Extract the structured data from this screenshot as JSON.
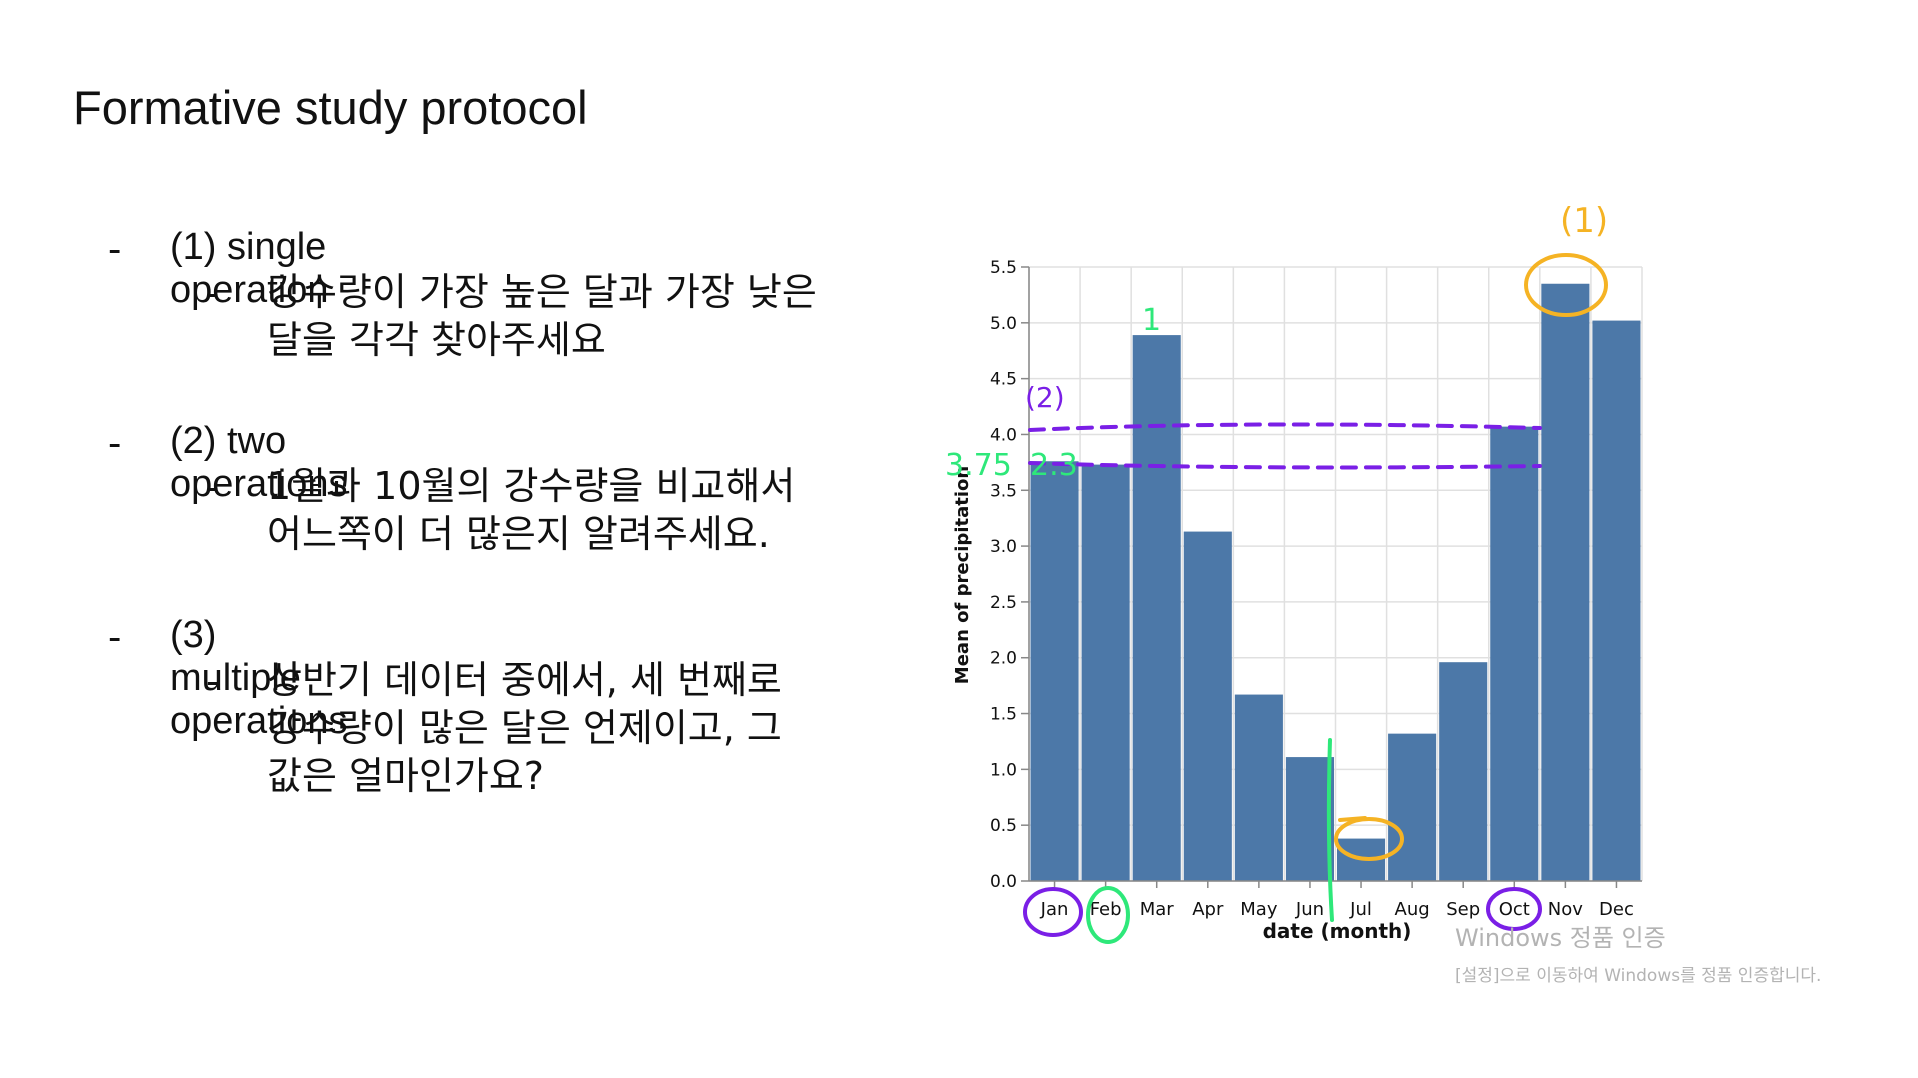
{
  "slide": {
    "title": "Formative study protocol",
    "bullet_marker": "-",
    "items": [
      {
        "heading": "(1) single operation",
        "detail": "강수량이 가장 높은 달과 가장 낮은\n달을 각각 찾아주세요"
      },
      {
        "heading": "(2) two operations",
        "detail": "1월과 10월의 강수량을 비교해서\n어느쪽이 더 많은지 알려주세요."
      },
      {
        "heading": "(3) multiple operations",
        "detail": "상반기 데이터 중에서, 세 번째로\n강수량이 많은 달은 언제이고, 그\n값은 얼마인가요?"
      }
    ]
  },
  "chart_data": {
    "type": "bar",
    "categories": [
      "Jan",
      "Feb",
      "Mar",
      "Apr",
      "May",
      "Jun",
      "Jul",
      "Aug",
      "Sep",
      "Oct",
      "Nov",
      "Dec"
    ],
    "values": [
      3.76,
      3.73,
      4.89,
      3.13,
      1.67,
      1.11,
      0.38,
      1.32,
      1.96,
      4.07,
      5.35,
      5.02
    ],
    "ylabel": "Mean of precipitation",
    "xlabel": "date (month)",
    "ylim": [
      0,
      5.5
    ],
    "yticks": [
      "0.0",
      "0.5",
      "1.0",
      "1.5",
      "2.0",
      "2.5",
      "3.0",
      "3.5",
      "4.0",
      "4.5",
      "5.0",
      "5.5"
    ],
    "grid": true,
    "bar_color": "#4c78a8"
  },
  "annotations": {
    "labels": [
      "(1)",
      "(2)",
      "1",
      "3.75",
      "2.3"
    ],
    "circled_months": [
      "Jan",
      "Feb",
      "Oct"
    ],
    "circled_bars": [
      "Nov",
      "Jul"
    ],
    "colors": {
      "orange": "#f5b324",
      "purple": "#7a1fe6",
      "green": "#2ee87a"
    }
  },
  "watermark": {
    "line1": "Windows 정품 인증",
    "line2": "[설정]으로 이동하여 Windows를 정품 인증합니다."
  }
}
